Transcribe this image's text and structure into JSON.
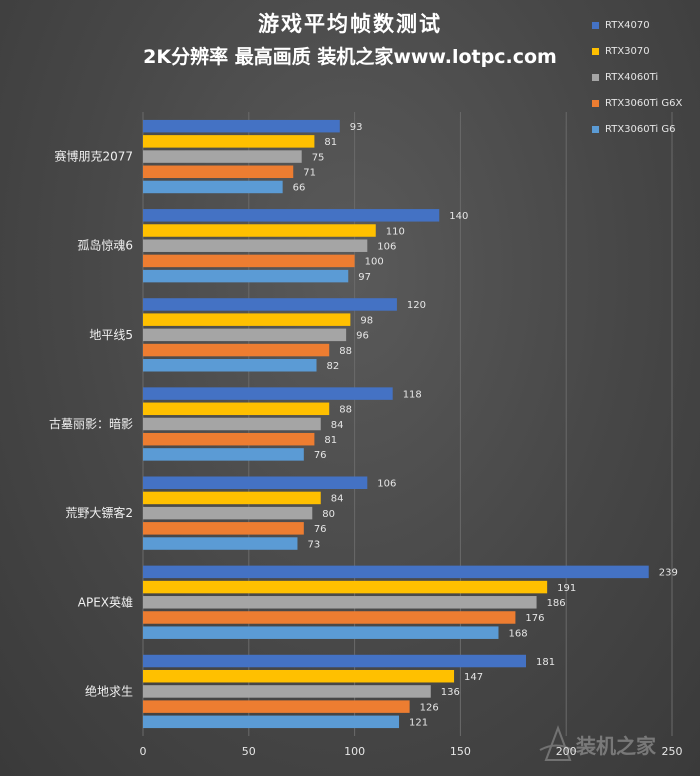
{
  "title": "游戏平均帧数测试",
  "subtitle": "2K分辨率 最高画质 装机之家www.lotpc.com",
  "colors": {
    "RTX4070": "#4472C4",
    "RTX3070": "#FFC000",
    "RTX4060Ti": "#A5A5A5",
    "RTX3060Ti G6X": "#ED7D31",
    "RTX3060Ti G6": "#5B9BD5"
  },
  "watermark": "装机之家",
  "chart_data": {
    "type": "bar",
    "orientation": "horizontal",
    "categories": [
      "赛博朋克2077",
      "孤岛惊魂6",
      "地平线5",
      "古墓丽影：暗影",
      "荒野大镖客2",
      "APEX英雄",
      "绝地求生"
    ],
    "series": [
      {
        "name": "RTX4070",
        "values": [
          93,
          140,
          120,
          118,
          106,
          239,
          181
        ]
      },
      {
        "name": "RTX3070",
        "values": [
          81,
          110,
          98,
          88,
          84,
          191,
          147
        ]
      },
      {
        "name": "RTX4060Ti",
        "values": [
          75,
          106,
          96,
          84,
          80,
          186,
          136
        ]
      },
      {
        "name": "RTX3060Ti G6X",
        "values": [
          71,
          100,
          88,
          81,
          76,
          176,
          126
        ]
      },
      {
        "name": "RTX3060Ti G6",
        "values": [
          66,
          97,
          82,
          76,
          73,
          168,
          121
        ]
      }
    ],
    "xlim": [
      0,
      250
    ],
    "xticks": [
      0,
      50,
      100,
      150,
      200,
      250
    ],
    "grid": true,
    "legend_position": "top-right",
    "title": "游戏平均帧数测试",
    "subtitle": "2K分辨率 最高画质 装机之家www.lotpc.com",
    "xlabel": "",
    "ylabel": ""
  }
}
